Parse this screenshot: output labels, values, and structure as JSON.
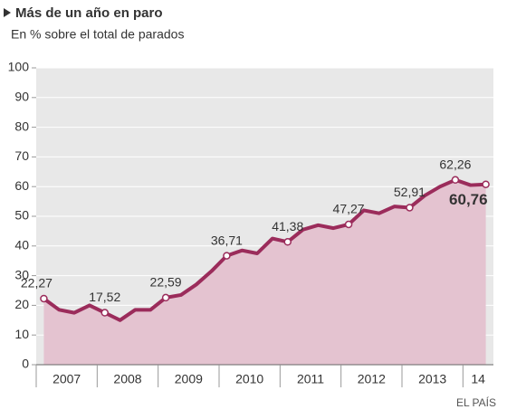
{
  "chart_data": {
    "type": "area",
    "title": "Más de un año en paro",
    "subtitle": "En % sobre el total de parados",
    "source": "EL PAÍS",
    "categories": [
      null,
      null,
      null,
      null,
      null,
      null,
      null,
      null,
      null,
      null,
      null,
      null,
      null,
      null,
      null,
      null,
      null,
      null,
      null,
      null,
      null,
      null,
      null,
      null,
      null,
      null,
      null,
      null,
      null,
      null
    ],
    "year_labels": [
      "2007",
      "2008",
      "2009",
      "2010",
      "2011",
      "2012",
      "2013",
      "14"
    ],
    "values": [
      22.27,
      18.5,
      17.5,
      20,
      17.52,
      15,
      18.5,
      18.5,
      22.59,
      23.5,
      27,
      31.5,
      36.71,
      38.5,
      37.5,
      42.5,
      41.38,
      45.5,
      47,
      46,
      47.27,
      52,
      51,
      53.3,
      52.91,
      57,
      60,
      62.26,
      60.5,
      60.76
    ],
    "value_labels": [
      "22,27",
      null,
      null,
      null,
      "17,52",
      null,
      null,
      null,
      "22,59",
      null,
      null,
      null,
      "36,71",
      null,
      null,
      null,
      "41,38",
      null,
      null,
      null,
      "47,27",
      null,
      null,
      null,
      "52,91",
      null,
      null,
      "62,26",
      null,
      "60,76"
    ],
    "ylim": [
      0,
      100
    ],
    "yticks": [
      0,
      10,
      20,
      30,
      40,
      50,
      60,
      70,
      80,
      90,
      100
    ],
    "grid": true,
    "color": "#9b2c5b",
    "fill_color": "#e4c3d0",
    "background": "#e8e8e8"
  }
}
